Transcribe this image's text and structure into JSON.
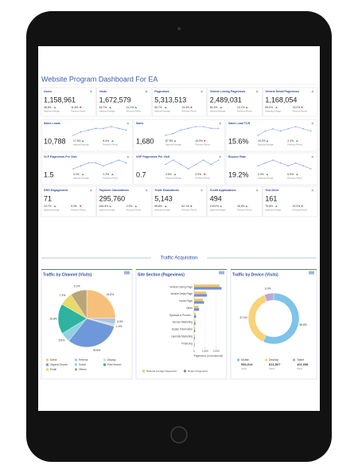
{
  "dashboard": {
    "title": "Website Program Dashboard For EA",
    "labels": {
      "national": "National Average",
      "previous": "Previous Period"
    },
    "rows": [
      [
        {
          "name": "Users",
          "value": "1,158,961",
          "national": "46.8%",
          "previous": "11.8%"
        },
        {
          "name": "Visits",
          "value": "1,672,579",
          "national": "45.7%",
          "previous": "11.2%"
        },
        {
          "name": "Pageviews",
          "value": "5,313,513",
          "national": "50.7%",
          "previous": "13.4%"
        },
        {
          "name": "Vehicle Listing Pageviews",
          "value": "2,489,031",
          "national": "54.3%",
          "previous": "14.7%"
        },
        {
          "name": "Vehicle Detail Pageviews",
          "value": "1,168,054",
          "national": "59.0%",
          "previous": "13.2%"
        }
      ],
      [
        {
          "name": "Sales Leads",
          "value": "10,788",
          "national": "17.6%",
          "previous": "8.4%",
          "trend": [
            3,
            5,
            6,
            7,
            7,
            8,
            7,
            6
          ]
        },
        {
          "name": "Sales",
          "value": "1,680",
          "national": "87.8%",
          "previous": "15.9%",
          "trend": [
            3,
            4,
            6,
            7,
            8,
            8,
            7,
            7
          ]
        },
        {
          "name": "Sales Lead TCR",
          "value": "15.6%",
          "national": "19.2%",
          "previous": "2.3%",
          "trend": [
            4,
            6,
            7,
            6,
            7,
            8,
            7,
            6
          ]
        }
      ],
      [
        {
          "name": "VLP Pageviews Per Visit",
          "value": "1.5",
          "national": "3.2%",
          "previous": "2.2%",
          "trend": [
            5,
            6,
            7,
            7,
            6,
            7,
            8,
            7
          ]
        },
        {
          "name": "VDP Pageviews Per Visit",
          "value": "0.7",
          "national": "4.6%",
          "previous": "0.9%",
          "trend": [
            6,
            7,
            6,
            5,
            6,
            7,
            6,
            7
          ]
        },
        {
          "name": "Bounce Rate",
          "value": "19.2%",
          "national": "3.3%",
          "previous": "6.9%",
          "trend": [
            6,
            7,
            8,
            7,
            6,
            7,
            6,
            5
          ]
        }
      ],
      [
        {
          "name": "DRS Engagement",
          "value": "71",
          "national": "24.7%",
          "previous": "5.3%"
        },
        {
          "name": "Payment Calculations",
          "value": "295,760",
          "national": "184.5%",
          "previous": "2.9%"
        },
        {
          "name": "Trade Evaluations",
          "value": "5,143",
          "national": "98.8%",
          "previous": "62.1%"
        },
        {
          "name": "Credit Applications",
          "value": "494",
          "national": "139.0%",
          "previous": "18.9%"
        },
        {
          "name": "Test Drive",
          "value": "161",
          "national": "75.8%",
          "previous": "15.3%"
        }
      ]
    ]
  },
  "section_title": "Traffic Acquisition",
  "chart_data": [
    {
      "type": "pie",
      "title": "Traffic by Channel (Visits)",
      "categories": [
        "Direct",
        "Referral",
        "Display",
        "Organic Search",
        "Social",
        "Paid Search",
        "Email",
        "Others"
      ],
      "values": [
        24.5,
        3.3,
        1.4,
        30.8,
        5.5,
        16.8,
        7.3,
        9.2
      ],
      "value_labels": [
        "24.5%",
        "3.3%",
        "1.4%",
        "30.8%",
        "5.5%",
        "16.8%",
        "7.3%",
        "9.2%"
      ],
      "colors": [
        "#f7c07a",
        "#a9c4e8",
        "#d6d6d6",
        "#6f98da",
        "#8fd3e0",
        "#2db3a0",
        "#e8d96b",
        "#b9a678"
      ]
    },
    {
      "type": "hbar",
      "title": "Site Section (Pageviews)",
      "categories": [
        "Vehicle Listing Page",
        "Vehicle Detail Page",
        "Home Page",
        "Other",
        "Specials & Promot...",
        "Service Marketing",
        "Dealer Information",
        "Hyundai Marketing",
        "Financing"
      ],
      "series": [
        {
          "name": "National Average Pageviews",
          "color": "#f3c46b",
          "values": [
            2300,
            1100,
            800,
            400,
            150,
            100,
            80,
            60,
            40
          ]
        },
        {
          "name": "Region Pageviews",
          "color": "#6f8fd8",
          "values": [
            2489,
            1168,
            900,
            450,
            180,
            120,
            90,
            70,
            50
          ]
        }
      ],
      "xlim": [
        0,
        2600
      ],
      "xticks": [
        0,
        {
          "value": 1000,
          "label": "1,000"
        },
        {
          "value": 2000,
          "label": "2,000"
        }
      ],
      "xlabel": "Pageviews (in thousands)",
      "grid": true
    },
    {
      "type": "donut",
      "title": "Traffic by Device (Visits)",
      "categories": [
        "Mobile",
        "Desktop",
        "Tablet"
      ],
      "values": [
        56.8,
        37.2,
        6.0
      ],
      "value_labels": [
        "56.8%",
        "37.2%",
        "6.0%"
      ],
      "visits": [
        "950,014",
        "621,507",
        "101,058"
      ],
      "unit_label": "Visits",
      "colors": [
        "#7ec3ea",
        "#f9d27a",
        "#b9a9d9"
      ]
    }
  ]
}
